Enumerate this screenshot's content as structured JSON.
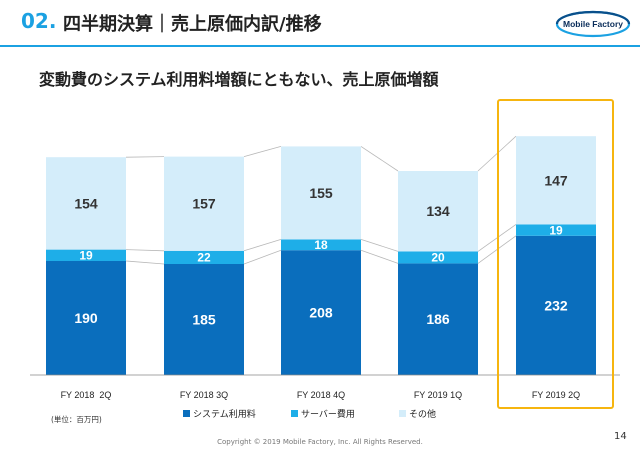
{
  "header": {
    "number": "02.",
    "title": "四半期決算｜売上原価内訳/推移",
    "logo_text": "Mobile Factory"
  },
  "subtitle": "変動費のシステム利用料増額にともない、売上原価増額",
  "unit_note": "(単位：百万円)",
  "footer": {
    "copyright": "Copyright © 2019 Mobile Factory, Inc. All Rights Reserved.",
    "page": "14"
  },
  "colors": {
    "accent": "#1ba1e2",
    "system": "#0a6ebd",
    "server": "#1eaee8",
    "other": "#d4edfa",
    "highlight": "#f6b50f"
  },
  "chart_data": {
    "type": "bar",
    "stacked": true,
    "categories": [
      "FY 2018  2Q",
      "FY 2018 3Q",
      "FY 2018 4Q",
      "FY 2019 1Q",
      "FY 2019 2Q"
    ],
    "series": [
      {
        "name": "システム利用料",
        "values": [
          190,
          185,
          208,
          186,
          232
        ]
      },
      {
        "name": "サーバー費用",
        "values": [
          19,
          22,
          18,
          20,
          19
        ]
      },
      {
        "name": "その他",
        "values": [
          154,
          157,
          155,
          134,
          147
        ]
      }
    ],
    "highlight_category": "FY 2019 2Q",
    "legend_position": "bottom",
    "grid": false
  }
}
